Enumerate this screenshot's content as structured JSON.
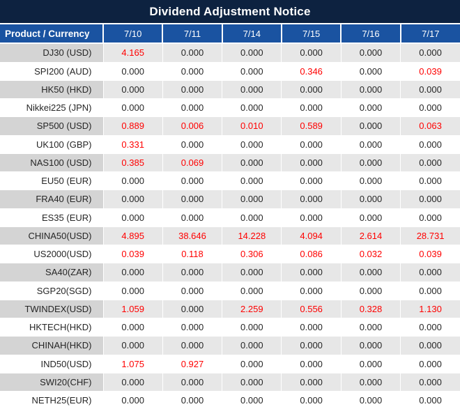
{
  "title": "Dividend Adjustment Notice",
  "table": {
    "product_header": "Product / Currency",
    "date_headers": [
      "7/10",
      "7/11",
      "7/14",
      "7/15",
      "7/16",
      "7/17"
    ],
    "rows": [
      {
        "product": "DJ30 (USD)",
        "values": [
          "4.165",
          "0.000",
          "0.000",
          "0.000",
          "0.000",
          "0.000"
        ],
        "red": [
          true,
          false,
          false,
          false,
          false,
          false
        ]
      },
      {
        "product": "SPI200 (AUD)",
        "values": [
          "0.000",
          "0.000",
          "0.000",
          "0.346",
          "0.000",
          "0.039"
        ],
        "red": [
          false,
          false,
          false,
          true,
          false,
          true
        ]
      },
      {
        "product": "HK50 (HKD)",
        "values": [
          "0.000",
          "0.000",
          "0.000",
          "0.000",
          "0.000",
          "0.000"
        ],
        "red": [
          false,
          false,
          false,
          false,
          false,
          false
        ]
      },
      {
        "product": "Nikkei225 (JPN)",
        "values": [
          "0.000",
          "0.000",
          "0.000",
          "0.000",
          "0.000",
          "0.000"
        ],
        "red": [
          false,
          false,
          false,
          false,
          false,
          false
        ]
      },
      {
        "product": "SP500 (USD)",
        "values": [
          "0.889",
          "0.006",
          "0.010",
          "0.589",
          "0.000",
          "0.063"
        ],
        "red": [
          true,
          true,
          true,
          true,
          false,
          true
        ]
      },
      {
        "product": "UK100 (GBP)",
        "values": [
          "0.331",
          "0.000",
          "0.000",
          "0.000",
          "0.000",
          "0.000"
        ],
        "red": [
          true,
          false,
          false,
          false,
          false,
          false
        ]
      },
      {
        "product": "NAS100 (USD)",
        "values": [
          "0.385",
          "0.069",
          "0.000",
          "0.000",
          "0.000",
          "0.000"
        ],
        "red": [
          true,
          true,
          false,
          false,
          false,
          false
        ]
      },
      {
        "product": "EU50 (EUR)",
        "values": [
          "0.000",
          "0.000",
          "0.000",
          "0.000",
          "0.000",
          "0.000"
        ],
        "red": [
          false,
          false,
          false,
          false,
          false,
          false
        ]
      },
      {
        "product": "FRA40 (EUR)",
        "values": [
          "0.000",
          "0.000",
          "0.000",
          "0.000",
          "0.000",
          "0.000"
        ],
        "red": [
          false,
          false,
          false,
          false,
          false,
          false
        ]
      },
      {
        "product": "ES35 (EUR)",
        "values": [
          "0.000",
          "0.000",
          "0.000",
          "0.000",
          "0.000",
          "0.000"
        ],
        "red": [
          false,
          false,
          false,
          false,
          false,
          false
        ]
      },
      {
        "product": "CHINA50(USD)",
        "values": [
          "4.895",
          "38.646",
          "14.228",
          "4.094",
          "2.614",
          "28.731"
        ],
        "red": [
          true,
          true,
          true,
          true,
          true,
          true
        ]
      },
      {
        "product": "US2000(USD)",
        "values": [
          "0.039",
          "0.118",
          "0.306",
          "0.086",
          "0.032",
          "0.039"
        ],
        "red": [
          true,
          true,
          true,
          true,
          true,
          true
        ]
      },
      {
        "product": "SA40(ZAR)",
        "values": [
          "0.000",
          "0.000",
          "0.000",
          "0.000",
          "0.000",
          "0.000"
        ],
        "red": [
          false,
          false,
          false,
          false,
          false,
          false
        ]
      },
      {
        "product": "SGP20(SGD)",
        "values": [
          "0.000",
          "0.000",
          "0.000",
          "0.000",
          "0.000",
          "0.000"
        ],
        "red": [
          false,
          false,
          false,
          false,
          false,
          false
        ]
      },
      {
        "product": "TWINDEX(USD)",
        "values": [
          "1.059",
          "0.000",
          "2.259",
          "0.556",
          "0.328",
          "1.130"
        ],
        "red": [
          true,
          false,
          true,
          true,
          true,
          true
        ]
      },
      {
        "product": "HKTECH(HKD)",
        "values": [
          "0.000",
          "0.000",
          "0.000",
          "0.000",
          "0.000",
          "0.000"
        ],
        "red": [
          false,
          false,
          false,
          false,
          false,
          false
        ]
      },
      {
        "product": "CHINAH(HKD)",
        "values": [
          "0.000",
          "0.000",
          "0.000",
          "0.000",
          "0.000",
          "0.000"
        ],
        "red": [
          false,
          false,
          false,
          false,
          false,
          false
        ]
      },
      {
        "product": "IND50(USD)",
        "values": [
          "1.075",
          "0.927",
          "0.000",
          "0.000",
          "0.000",
          "0.000"
        ],
        "red": [
          true,
          true,
          false,
          false,
          false,
          false
        ]
      },
      {
        "product": "SWI20(CHF)",
        "values": [
          "0.000",
          "0.000",
          "0.000",
          "0.000",
          "0.000",
          "0.000"
        ],
        "red": [
          false,
          false,
          false,
          false,
          false,
          false
        ]
      },
      {
        "product": "NETH25(EUR)",
        "values": [
          "0.000",
          "0.000",
          "0.000",
          "0.000",
          "0.000",
          "0.000"
        ],
        "red": [
          false,
          false,
          false,
          false,
          false,
          false
        ]
      }
    ]
  },
  "colors": {
    "title_bg": "#0d2240",
    "header_bg": "#1a53a1",
    "stripe_product": "#d4d4d4",
    "stripe_data": "#e7e7e7",
    "value_black": "#262626",
    "value_red": "#ff0000"
  }
}
